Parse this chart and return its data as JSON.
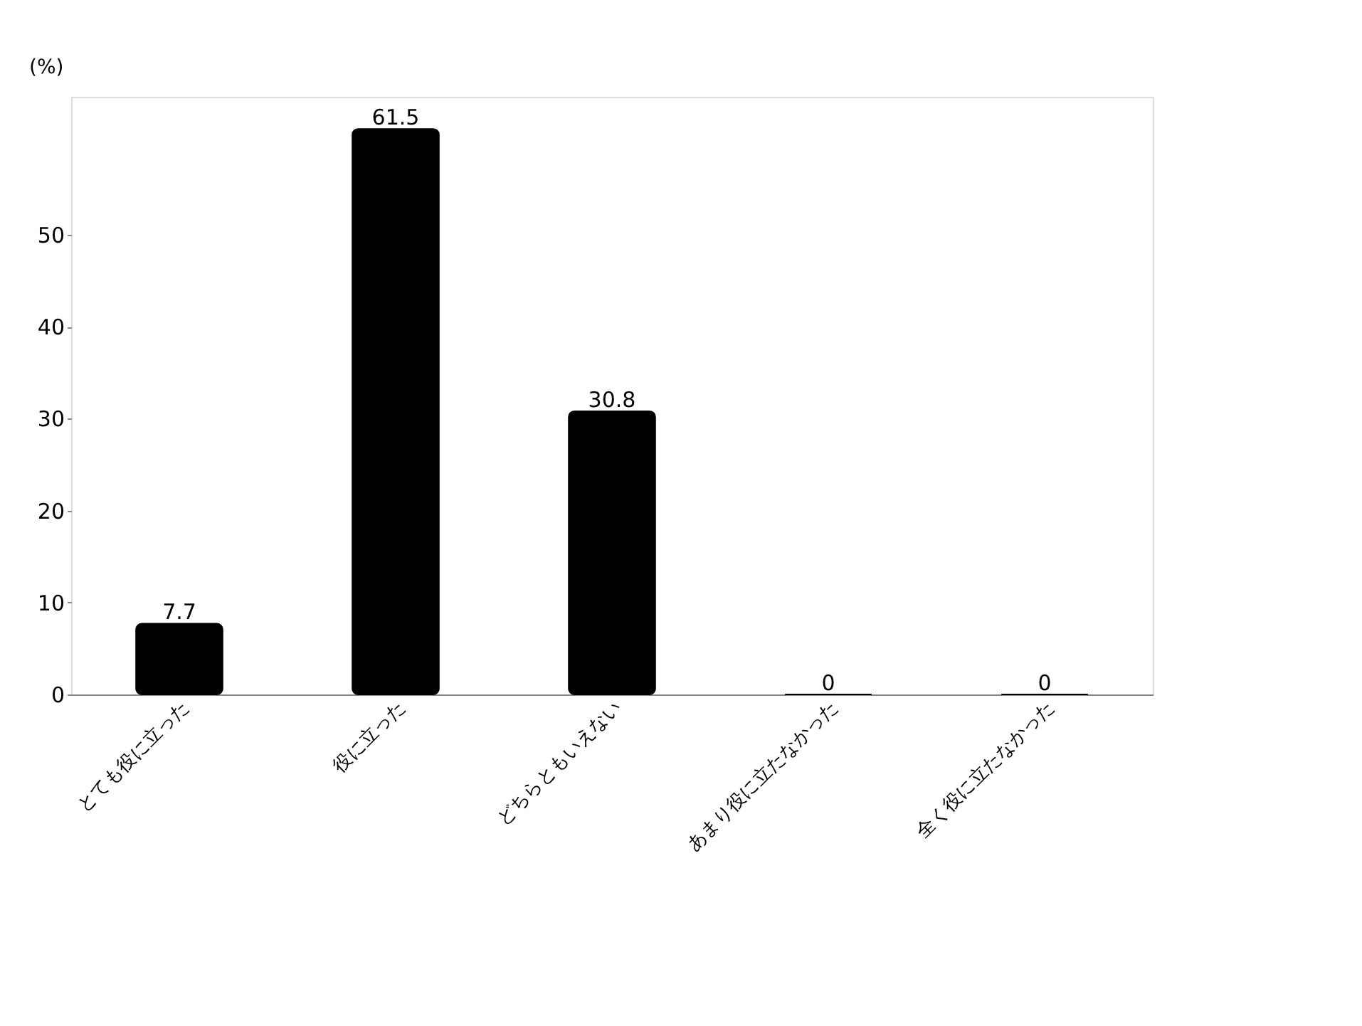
{
  "chart_data": {
    "type": "bar",
    "ylabel": "(%)",
    "categories": [
      "とても役に立った",
      "役に立った",
      "どちらともいえない",
      "あまり役に立たなかった",
      "全く役に立たなかった"
    ],
    "values": [
      7.7,
      61.5,
      30.8,
      0,
      0
    ],
    "color": "#000000",
    "ylim": [
      0,
      65
    ],
    "yticks": [
      0,
      10,
      20,
      30,
      40,
      50
    ],
    "data_labels": true,
    "grid": false
  }
}
